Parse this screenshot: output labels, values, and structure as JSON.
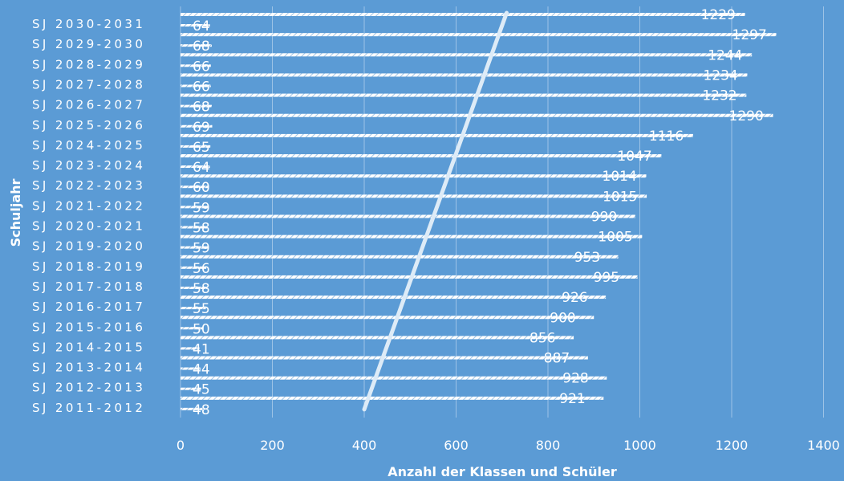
{
  "chart_data": {
    "type": "bar",
    "orientation": "horizontal",
    "xlabel": "Anzahl der Klassen und Schüler",
    "ylabel": "Schuljahr",
    "xlim": [
      0,
      1400
    ],
    "xticks": [
      "0",
      "200",
      "400",
      "600",
      "800",
      "1000",
      "1200",
      "1400"
    ],
    "grid": true,
    "categories": [
      "SJ 2011-2012",
      "SJ 2012-2013",
      "SJ 2013-2014",
      "SJ 2014-2015",
      "SJ 2015-2016",
      "SJ 2016-2017",
      "SJ 2017-2018",
      "SJ 2018-2019",
      "SJ 2019-2020",
      "SJ 2020-2021",
      "SJ 2021-2022",
      "SJ 2022-2023",
      "SJ 2023-2024",
      "SJ 2024-2025",
      "SJ 2025-2026",
      "SJ 2026-2027",
      "SJ 2027-2028",
      "SJ 2028-2029",
      "SJ 2029-2030",
      "SJ 2030-2031"
    ],
    "series": [
      {
        "values": [
          48,
          45,
          44,
          41,
          50,
          55,
          58,
          56,
          59,
          58,
          59,
          60,
          64,
          65,
          69,
          68,
          66,
          66,
          68,
          64
        ]
      },
      {
        "values": [
          921,
          928,
          887,
          856,
          900,
          926,
          995,
          953,
          1005,
          990,
          1015,
          1014,
          1047,
          1116,
          1290,
          1232,
          1234,
          1244,
          1297,
          1229
        ]
      }
    ],
    "trendline": {
      "from": [
        400,
        "SJ 2011-2012"
      ],
      "to": [
        710,
        "SJ 2030-2031"
      ]
    },
    "colors": {
      "background": "#5B9BD5",
      "bars": "#FFFFFF",
      "grid": "#9DC3E6",
      "text": "#FFFFFF",
      "trendline": "#DDEBF7"
    }
  }
}
